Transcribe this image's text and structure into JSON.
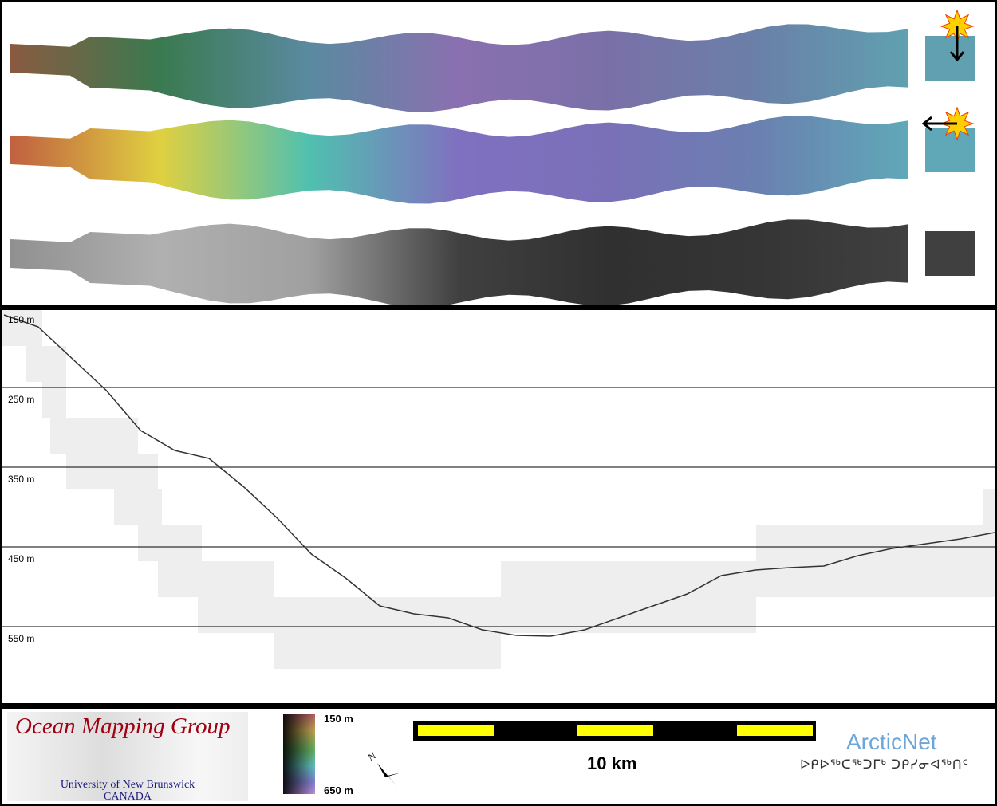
{
  "map_strips": [
    {
      "name": "depth-shaded-sun-north",
      "colors": [
        "#8a5a40",
        "#3a7a50",
        "#5a8aa0",
        "#8a70b0",
        "#7a70a8",
        "#6a80a8",
        "#60a0b0"
      ]
    },
    {
      "name": "depth-shaded-sun-east",
      "colors": [
        "#c06040",
        "#e0d040",
        "#50c0b0",
        "#8070c0",
        "#7a70b8",
        "#6a80b0",
        "#60a8b8"
      ]
    },
    {
      "name": "backscatter",
      "colors": [
        "#909090",
        "#b0b0b0",
        "#a0a0a0",
        "#404040",
        "#303030",
        "#353535",
        "#404040"
      ]
    }
  ],
  "sun_icons": [
    "sun-illumination-north",
    "sun-illumination-east"
  ],
  "profile": {
    "depth_labels": [
      "150 m",
      "250 m",
      "350 m",
      "450 m",
      "550 m"
    ],
    "depth_m": [
      159,
      174,
      214,
      254,
      304,
      329,
      339,
      374,
      414,
      459,
      489,
      524,
      534,
      539,
      554,
      561,
      562,
      554,
      539,
      524,
      509,
      486,
      479,
      476,
      474,
      461,
      452,
      446,
      440,
      432
    ]
  },
  "footer": {
    "logo_title": "Ocean Mapping Group",
    "logo_sub1": "University of New Brunswick",
    "logo_sub2": "CANADA",
    "colorbar_top": "150 m",
    "colorbar_bottom": "650 m",
    "north_label": "N",
    "scale_label": "10 km",
    "partner_name": "ArcticNet",
    "partner_syllabics": "ᐅᑭᐅᖅᑕᖅᑐᒥᒃ ᑐᑭᓯᓂᐊᖅᑎᑦ"
  }
}
